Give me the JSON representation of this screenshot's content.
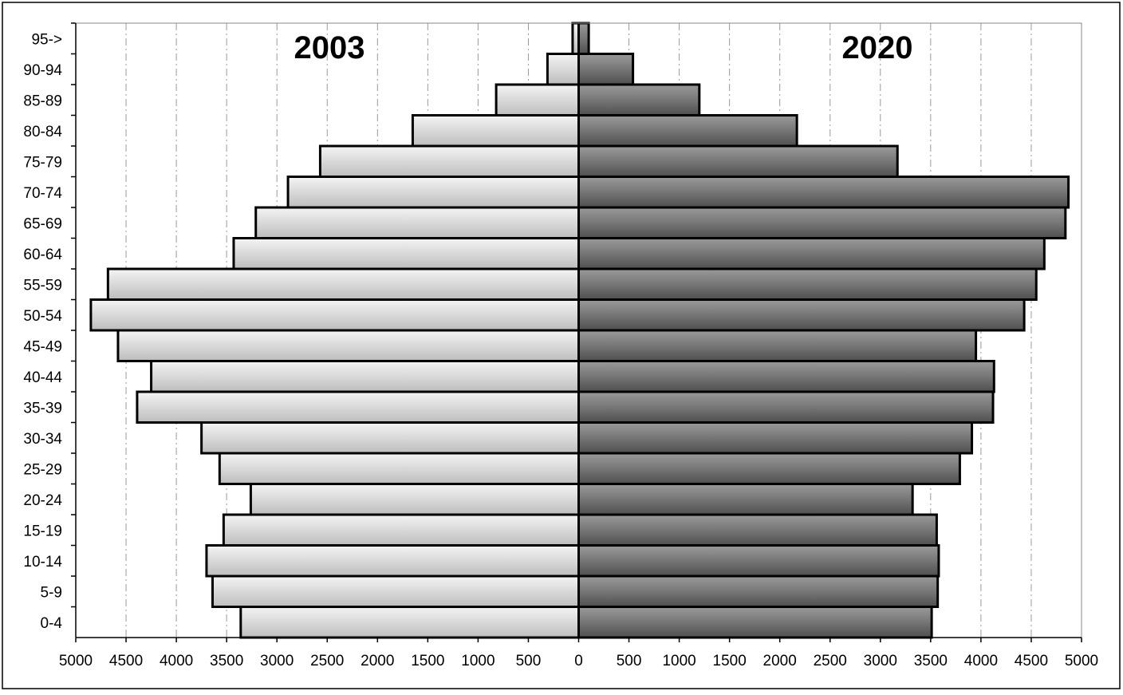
{
  "chart_data": {
    "type": "bar",
    "orientation": "horizontal",
    "layout": "population-pyramid",
    "categories": [
      "0-4",
      "5-9",
      "10-14",
      "15-19",
      "20-24",
      "25-29",
      "30-34",
      "35-39",
      "40-44",
      "45-49",
      "50-54",
      "55-59",
      "60-64",
      "65-69",
      "70-74",
      "75-79",
      "80-84",
      "85-89",
      "90-94",
      "95->"
    ],
    "series": [
      {
        "name": "2003",
        "direction": "left",
        "color": "#d8d8d8",
        "values": [
          3360,
          3640,
          3700,
          3530,
          3260,
          3570,
          3750,
          4390,
          4250,
          4580,
          4850,
          4680,
          3430,
          3210,
          2890,
          2570,
          1650,
          820,
          310,
          60
        ]
      },
      {
        "name": "2020",
        "direction": "right",
        "color": "#707070",
        "values": [
          3510,
          3570,
          3580,
          3560,
          3320,
          3790,
          3910,
          4120,
          4130,
          3950,
          4430,
          4550,
          4630,
          4840,
          4870,
          3170,
          2170,
          1200,
          540,
          100
        ]
      }
    ],
    "x_ticks": [
      "5000",
      "4500",
      "4000",
      "3500",
      "3000",
      "2500",
      "2000",
      "1500",
      "1000",
      "500",
      "0",
      "500",
      "1000",
      "1500",
      "2000",
      "2500",
      "3000",
      "3500",
      "4000",
      "4500",
      "5000"
    ],
    "xlim": [
      -5000,
      5000
    ],
    "grid": "vertical dashed",
    "legend": "none"
  }
}
